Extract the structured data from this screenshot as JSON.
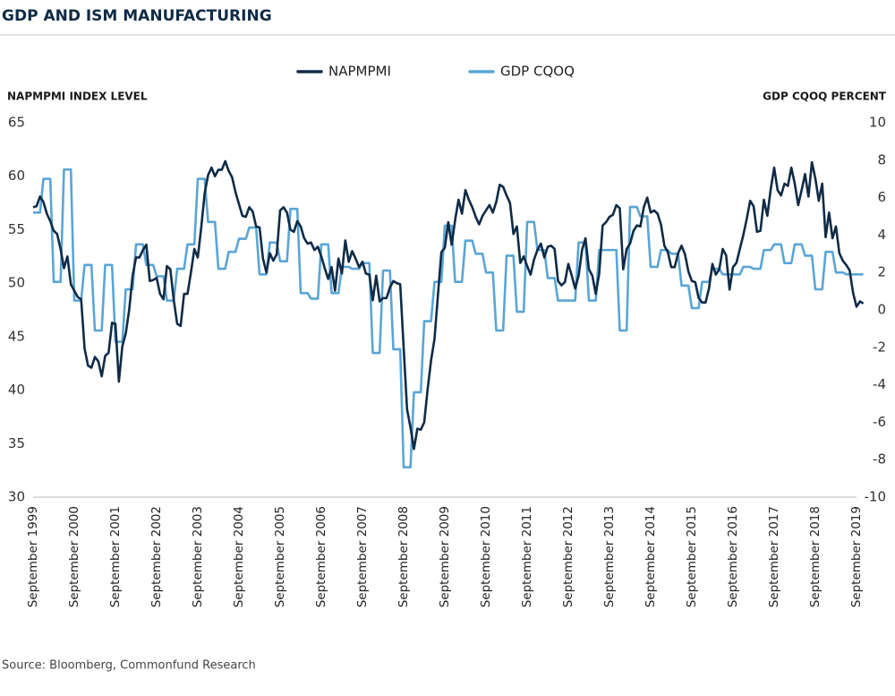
{
  "chart_data": {
    "type": "line",
    "title": "GDP AND ISM MANUFACTURING",
    "y_label": "NAPMPMI INDEX LEVEL",
    "y2_label": "GDP CQOQ PERCENT",
    "source": "Source:  Bloomberg, Commonfund Research",
    "legend": "top",
    "grid": false,
    "categories": [
      "September 1999",
      null,
      null,
      null,
      null,
      null,
      null,
      null,
      null,
      null,
      null,
      null,
      "September 2000",
      null,
      null,
      null,
      null,
      null,
      null,
      null,
      null,
      null,
      null,
      null,
      "September 2001",
      null,
      null,
      null,
      null,
      null,
      null,
      null,
      null,
      null,
      null,
      null,
      "September 2002",
      null,
      null,
      null,
      null,
      null,
      null,
      null,
      null,
      null,
      null,
      null,
      "September 2003",
      null,
      null,
      null,
      null,
      null,
      null,
      null,
      null,
      null,
      null,
      null,
      "September 2004",
      null,
      null,
      null,
      null,
      null,
      null,
      null,
      null,
      null,
      null,
      null,
      "September 2005",
      null,
      null,
      null,
      null,
      null,
      null,
      null,
      null,
      null,
      null,
      null,
      "September 2006",
      null,
      null,
      null,
      null,
      null,
      null,
      null,
      null,
      null,
      null,
      null,
      "September 2007",
      null,
      null,
      null,
      null,
      null,
      null,
      null,
      null,
      null,
      null,
      null,
      "September 2008",
      null,
      null,
      null,
      null,
      null,
      null,
      null,
      null,
      null,
      null,
      null,
      "September 2009",
      null,
      null,
      null,
      null,
      null,
      null,
      null,
      null,
      null,
      null,
      null,
      "September 2010",
      null,
      null,
      null,
      null,
      null,
      null,
      null,
      null,
      null,
      null,
      null,
      "September 2011",
      null,
      null,
      null,
      null,
      null,
      null,
      null,
      null,
      null,
      null,
      null,
      "September 2012",
      null,
      null,
      null,
      null,
      null,
      null,
      null,
      null,
      null,
      null,
      null,
      "September 2013",
      null,
      null,
      null,
      null,
      null,
      null,
      null,
      null,
      null,
      null,
      null,
      "September 2014",
      null,
      null,
      null,
      null,
      null,
      null,
      null,
      null,
      null,
      null,
      null,
      "September 2015",
      null,
      null,
      null,
      null,
      null,
      null,
      null,
      null,
      null,
      null,
      null,
      "September 2016",
      null,
      null,
      null,
      null,
      null,
      null,
      null,
      null,
      null,
      null,
      null,
      "September 2017",
      null,
      null,
      null,
      null,
      null,
      null,
      null,
      null,
      null,
      null,
      null,
      "September 2018",
      null,
      null,
      null,
      null,
      null,
      null,
      null,
      null,
      null,
      null,
      null,
      "September 2019",
      null,
      null
    ],
    "ylim": [
      30,
      65
    ],
    "yticks": [
      30,
      35,
      40,
      45,
      50,
      55,
      60,
      65
    ],
    "y2lim": [
      -10,
      10
    ],
    "y2ticks": [
      -10,
      -8,
      -6,
      -4,
      -2,
      0,
      2,
      4,
      6,
      8,
      10
    ],
    "series": [
      {
        "name": "NAPMPMI",
        "color": "#0f2b46",
        "values": [
          57.1,
          57.2,
          58.1,
          57.6,
          56.5,
          55.8,
          54.9,
          54.6,
          53.2,
          51.4,
          52.5,
          49.9,
          49.3,
          48.7,
          48.5,
          43.9,
          42.3,
          42.1,
          43.1,
          42.7,
          41.3,
          43.2,
          43.5,
          46.3,
          46.2,
          40.8,
          44.1,
          45.3,
          47.5,
          50.7,
          52.4,
          52.4,
          53.1,
          53.6,
          50.2,
          50.3,
          50.5,
          49.0,
          48.5,
          51.6,
          51.3,
          48.4,
          46.2,
          46.0,
          49.0,
          49.0,
          51.0,
          53.2,
          52.4,
          55.2,
          58.4,
          60.1,
          60.8,
          60.0,
          60.6,
          60.6,
          61.4,
          60.5,
          59.9,
          58.5,
          57.4,
          56.3,
          56.2,
          57.1,
          56.7,
          55.3,
          55.2,
          52.3,
          51.0,
          52.8,
          52.1,
          52.7,
          56.8,
          57.1,
          56.6,
          55.0,
          54.8,
          55.8,
          55.3,
          54.2,
          53.7,
          53.8,
          53.1,
          53.4,
          52.5,
          51.4,
          50.4,
          51.5,
          49.3,
          52.3,
          50.9,
          54.0,
          52.0,
          53.0,
          52.3,
          51.5,
          52.0,
          50.9,
          50.8,
          48.4,
          50.7,
          48.3,
          48.6,
          48.6,
          49.6,
          50.2,
          50.0,
          49.9,
          44.0,
          38.2,
          36.5,
          34.5,
          36.4,
          36.3,
          37.0,
          40.1,
          42.8,
          44.8,
          48.9,
          52.9,
          53.3,
          55.7,
          53.6,
          55.9,
          57.8,
          56.5,
          58.7,
          57.8,
          57.1,
          56.2,
          55.5,
          56.3,
          56.8,
          57.3,
          56.6,
          57.6,
          59.2,
          59.0,
          58.2,
          57.5,
          54.6,
          55.3,
          51.9,
          52.5,
          51.6,
          50.8,
          52.2,
          53.1,
          53.7,
          52.4,
          53.4,
          53.5,
          53.2,
          50.2,
          49.8,
          50.1,
          51.8,
          50.7,
          49.5,
          50.7,
          53.1,
          54.2,
          51.3,
          50.7,
          49.0,
          50.9,
          55.4,
          55.7,
          56.2,
          56.4,
          57.3,
          57.0,
          51.3,
          53.2,
          53.7,
          54.9,
          55.4,
          55.3,
          57.1,
          58.0,
          56.6,
          56.8,
          56.5,
          55.5,
          53.5,
          52.9,
          51.5,
          51.5,
          52.8,
          53.5,
          52.7,
          51.1,
          50.2,
          50.1,
          48.6,
          48.2,
          48.2,
          49.5,
          51.8,
          50.8,
          51.3,
          53.2,
          52.6,
          49.4,
          51.5,
          51.9,
          53.2,
          54.5,
          56.0,
          57.7,
          57.2,
          54.8,
          54.9,
          57.8,
          56.3,
          58.8,
          60.8,
          58.7,
          58.2,
          59.3,
          59.1,
          60.8,
          59.3,
          57.3,
          58.7,
          60.2,
          58.1,
          61.3,
          59.8,
          57.7,
          59.3,
          54.3,
          56.6,
          54.2,
          55.3,
          52.8,
          52.1,
          51.7,
          51.2,
          49.1,
          47.8,
          48.3,
          48.1
        ]
      },
      {
        "name": "GDP CQOQ",
        "color": "#5aa5d6",
        "axis": "y2",
        "values": [
          5.2,
          5.2,
          5.2,
          7,
          7,
          7,
          1.5,
          1.5,
          1.5,
          7.5,
          7.5,
          7.5,
          0.5,
          0.5,
          0.5,
          2.4,
          2.4,
          2.4,
          -1.1,
          -1.1,
          -1.1,
          2.4,
          2.4,
          2.4,
          -1.7,
          -1.7,
          -1.7,
          1.1,
          1.1,
          1.1,
          3.5,
          3.5,
          3.5,
          2.4,
          2.4,
          2.4,
          1.8,
          1.8,
          1.8,
          0.5,
          0.5,
          0.5,
          2.2,
          2.2,
          2.2,
          3.5,
          3.5,
          3.5,
          7,
          7,
          7,
          4.7,
          4.7,
          4.7,
          2.2,
          2.2,
          2.2,
          3.1,
          3.1,
          3.1,
          3.8,
          3.8,
          3.8,
          4.4,
          4.4,
          4.4,
          1.9,
          1.9,
          1.9,
          3.6,
          3.6,
          3.6,
          2.6,
          2.6,
          2.6,
          5.4,
          5.4,
          5.4,
          0.9,
          0.9,
          0.9,
          0.6,
          0.6,
          0.6,
          3.5,
          3.5,
          3.5,
          0.9,
          0.9,
          0.9,
          2.3,
          2.3,
          2.3,
          2.2,
          2.2,
          2.2,
          2.5,
          2.5,
          2.5,
          -2.3,
          -2.3,
          -2.3,
          2.1,
          2.1,
          2.1,
          -2.1,
          -2.1,
          -2.1,
          -8.4,
          -8.4,
          -8.4,
          -4.4,
          -4.4,
          -4.4,
          -0.6,
          -0.6,
          -0.6,
          1.5,
          1.5,
          1.5,
          4.5,
          4.5,
          4.5,
          1.5,
          1.5,
          1.5,
          3.7,
          3.7,
          3.7,
          3,
          3,
          3,
          2,
          2,
          2,
          -1.1,
          -1.1,
          -1.1,
          2.9,
          2.9,
          2.9,
          -0.1,
          -0.1,
          -0.1,
          4.7,
          4.7,
          4.7,
          3.2,
          3.2,
          3.2,
          1.7,
          1.7,
          1.7,
          0.5,
          0.5,
          0.5,
          0.5,
          0.5,
          0.5,
          3.6,
          3.6,
          3.6,
          0.5,
          0.5,
          0.5,
          3.2,
          3.2,
          3.2,
          3.2,
          3.2,
          3.2,
          -1.1,
          -1.1,
          -1.1,
          5.5,
          5.5,
          5.5,
          5,
          5,
          5,
          2.3,
          2.3,
          2.3,
          3.2,
          3.2,
          3.2,
          3,
          3,
          3,
          1.3,
          1.3,
          1.3,
          0.1,
          0.1,
          0.1,
          1.5,
          1.5,
          1.5,
          2.2,
          2.2,
          2.2,
          1.9,
          1.9,
          1.9,
          1.9,
          1.9,
          1.9,
          2.3,
          2.3,
          2.3,
          2.2,
          2.2,
          2.2,
          3.2,
          3.2,
          3.2,
          3.5,
          3.5,
          3.5,
          2.5,
          2.5,
          2.5,
          3.5,
          3.5,
          3.5,
          2.9,
          2.9,
          2.9,
          1.1,
          1.1,
          1.1,
          3.1,
          3.1,
          3.1,
          2,
          2,
          2,
          1.9,
          1.9,
          1.9,
          1.9,
          1.9,
          1.9
        ]
      }
    ]
  }
}
